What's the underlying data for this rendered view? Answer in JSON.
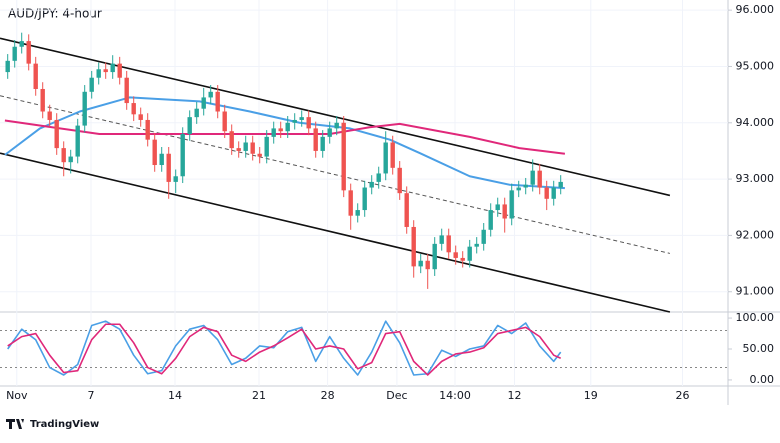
{
  "chart_data": {
    "type": "candlestick",
    "title": "AUD/JPY: 4-hour",
    "footer": "TradingView",
    "up_color": "#26a69a",
    "down_color": "#ef5350",
    "open": [
      94.9,
      95.1,
      95.35,
      95.45,
      95.05,
      94.6,
      94.2,
      94.05,
      93.55,
      93.3,
      93.4,
      93.95,
      94.55,
      94.8,
      94.95,
      94.9,
      95.05,
      94.8,
      94.35,
      94.15,
      94.05,
      93.7,
      93.25,
      93.45,
      92.95,
      93.05,
      93.8,
      94.1,
      94.25,
      94.45,
      94.55,
      94.2,
      93.85,
      93.55,
      93.5,
      93.65,
      93.45,
      93.4,
      93.75,
      93.9,
      93.85,
      94.0,
      94.05,
      94.1,
      93.9,
      93.5,
      93.75,
      93.9,
      94.0,
      92.8,
      92.35,
      92.45,
      92.85,
      92.95,
      93.1,
      93.65,
      93.2,
      92.75,
      92.15,
      91.45,
      91.55,
      91.4,
      91.85,
      92.0,
      91.7,
      91.6,
      91.55,
      91.8,
      91.85,
      92.1,
      92.45,
      92.55,
      92.3,
      92.8,
      92.85,
      92.9,
      93.15,
      92.85,
      92.65,
      92.85
    ],
    "high": [
      95.22,
      95.47,
      95.6,
      95.57,
      95.17,
      94.72,
      94.32,
      94.17,
      93.67,
      93.52,
      94.07,
      94.67,
      94.92,
      95.07,
      95.07,
      95.2,
      95.17,
      94.92,
      94.47,
      94.27,
      94.17,
      93.82,
      93.57,
      93.57,
      93.17,
      93.92,
      94.22,
      94.37,
      94.62,
      94.67,
      94.67,
      94.32,
      93.97,
      93.67,
      93.77,
      93.77,
      93.57,
      93.87,
      94.02,
      94.02,
      94.12,
      94.17,
      94.22,
      94.22,
      94.02,
      93.87,
      94.02,
      94.12,
      94.12,
      92.92,
      92.57,
      92.97,
      93.07,
      93.22,
      93.85,
      93.77,
      93.32,
      92.87,
      92.27,
      91.67,
      91.67,
      91.97,
      92.12,
      92.12,
      91.82,
      91.72,
      91.92,
      91.97,
      92.22,
      92.57,
      92.67,
      92.67,
      92.92,
      92.97,
      93.02,
      93.35,
      93.27,
      92.97,
      92.97,
      93.07
    ],
    "low": [
      94.78,
      94.98,
      95.23,
      94.93,
      94.48,
      94.08,
      93.93,
      93.43,
      93.05,
      93.1,
      93.28,
      93.83,
      94.43,
      94.68,
      94.78,
      94.78,
      94.68,
      94.23,
      94.03,
      93.93,
      93.58,
      93.13,
      93.13,
      92.65,
      92.75,
      92.93,
      93.68,
      93.98,
      94.13,
      94.33,
      94.08,
      93.73,
      93.43,
      93.38,
      93.38,
      93.33,
      93.28,
      93.28,
      93.63,
      93.73,
      93.73,
      93.88,
      93.93,
      93.78,
      93.38,
      93.38,
      93.63,
      93.78,
      92.68,
      92.1,
      92.23,
      92.33,
      92.73,
      92.83,
      92.98,
      93.08,
      92.63,
      92.03,
      91.25,
      91.33,
      91.05,
      91.28,
      91.73,
      91.58,
      91.48,
      91.43,
      91.43,
      91.68,
      91.73,
      91.98,
      92.33,
      92.05,
      92.18,
      92.68,
      92.73,
      92.78,
      92.73,
      92.45,
      92.53,
      92.73
    ],
    "close": [
      95.1,
      95.35,
      95.45,
      95.05,
      94.6,
      94.2,
      94.05,
      93.55,
      93.3,
      93.4,
      93.95,
      94.55,
      94.8,
      94.95,
      94.9,
      95.05,
      94.8,
      94.35,
      94.15,
      94.05,
      93.7,
      93.25,
      93.45,
      92.95,
      93.05,
      93.8,
      94.1,
      94.25,
      94.45,
      94.55,
      94.2,
      93.85,
      93.55,
      93.5,
      93.65,
      93.45,
      93.4,
      93.75,
      93.9,
      93.85,
      94.0,
      94.05,
      94.1,
      93.9,
      93.5,
      93.75,
      93.9,
      94.0,
      92.8,
      92.35,
      92.45,
      92.85,
      92.95,
      93.1,
      93.65,
      93.2,
      92.75,
      92.15,
      91.45,
      91.55,
      91.4,
      91.85,
      92.0,
      91.7,
      91.6,
      91.55,
      91.8,
      91.85,
      92.1,
      92.45,
      92.55,
      92.3,
      92.8,
      92.85,
      92.9,
      93.15,
      92.85,
      92.65,
      92.85,
      92.95
    ],
    "xlim": [
      -1.1,
      102.9
    ],
    "xticks": [
      {
        "value": 1.3,
        "label": "Nov"
      },
      {
        "value": 11.9,
        "label": "7"
      },
      {
        "value": 23.9,
        "label": "14"
      },
      {
        "value": 35.9,
        "label": "21"
      },
      {
        "value": 45.7,
        "label": "28"
      },
      {
        "value": 55.6,
        "label": "Dec"
      },
      {
        "value": 63.9,
        "label": "14:00"
      },
      {
        "value": 72.4,
        "label": "12"
      },
      {
        "value": 83.3,
        "label": "19"
      },
      {
        "value": 96.4,
        "label": "26"
      }
    ],
    "ylim": [
      90.64,
      96.18
    ],
    "yticks": [
      {
        "value": 96,
        "label": "96.000"
      },
      {
        "value": 95,
        "label": "95.000"
      },
      {
        "value": 94,
        "label": "94.000"
      },
      {
        "value": 93,
        "label": "93.000"
      },
      {
        "value": 92,
        "label": "92.000"
      },
      {
        "value": 91,
        "label": "91.000"
      }
    ],
    "overlays": [
      {
        "color": "#4a9fe6",
        "x": [
          -0.4,
          4.6,
          10.3,
          17.4,
          27.4,
          34.6,
          41.7,
          48.9,
          54.6,
          58.9,
          66,
          71.7,
          79.6
        ],
        "values": [
          93.43,
          93.9,
          94.2,
          94.45,
          94.38,
          94.2,
          94.0,
          93.9,
          93.7,
          93.46,
          93.05,
          92.9,
          92.84
        ]
      },
      {
        "color": "#e0287a",
        "x": [
          -0.4,
          13.1,
          30,
          46,
          51.7,
          56,
          66,
          73.1,
          79.6
        ],
        "values": [
          94.04,
          93.8,
          93.8,
          93.8,
          93.92,
          93.98,
          93.75,
          93.55,
          93.45
        ]
      }
    ],
    "channel": [
      {
        "color": "#111111",
        "dashed": false,
        "x": [
          -1.1,
          94.6
        ],
        "values": [
          95.5,
          92.71
        ]
      },
      {
        "color": "#555555",
        "dashed": true,
        "x": [
          -1.1,
          94.6
        ],
        "values": [
          94.48,
          91.68
        ]
      },
      {
        "color": "#111111",
        "dashed": false,
        "x": [
          -1.1,
          94.6
        ],
        "values": [
          93.46,
          90.64
        ]
      }
    ],
    "oscillator": {
      "ylim": [
        -9.8,
        109.8
      ],
      "yticks": [
        {
          "value": 100,
          "label": "100.00"
        },
        {
          "value": 50,
          "label": "50.00"
        },
        {
          "value": 0,
          "label": "0.00"
        }
      ],
      "levels": [
        80,
        20
      ],
      "series": [
        {
          "color": "#4a9fe6",
          "x": [
            0,
            2,
            4,
            6,
            8,
            10,
            12,
            14,
            16,
            18,
            20,
            22,
            24,
            26,
            28,
            30,
            32,
            34,
            36,
            38,
            40,
            42,
            44,
            46,
            48,
            50,
            52,
            54,
            56,
            58,
            60,
            62,
            64,
            66,
            68,
            70,
            72,
            74,
            76,
            78,
            79
          ],
          "values": [
            50,
            82,
            65,
            20,
            8,
            25,
            88,
            95,
            82,
            40,
            10,
            15,
            55,
            82,
            88,
            65,
            25,
            35,
            55,
            52,
            78,
            85,
            30,
            70,
            35,
            8,
            45,
            95,
            60,
            8,
            10,
            48,
            38,
            50,
            55,
            88,
            75,
            92,
            55,
            30,
            45
          ]
        },
        {
          "color": "#e0287a",
          "x": [
            0,
            2,
            4,
            6,
            8,
            10,
            12,
            14,
            16,
            18,
            20,
            22,
            24,
            26,
            28,
            30,
            32,
            34,
            36,
            38,
            40,
            42,
            44,
            46,
            48,
            50,
            52,
            54,
            56,
            58,
            60,
            62,
            64,
            66,
            68,
            70,
            72,
            74,
            76,
            78,
            79
          ],
          "values": [
            55,
            70,
            75,
            40,
            12,
            15,
            65,
            90,
            90,
            60,
            20,
            10,
            35,
            70,
            85,
            78,
            40,
            30,
            45,
            55,
            68,
            82,
            50,
            55,
            50,
            18,
            28,
            75,
            78,
            30,
            8,
            30,
            42,
            45,
            52,
            75,
            80,
            85,
            70,
            40,
            35
          ]
        }
      ]
    }
  }
}
